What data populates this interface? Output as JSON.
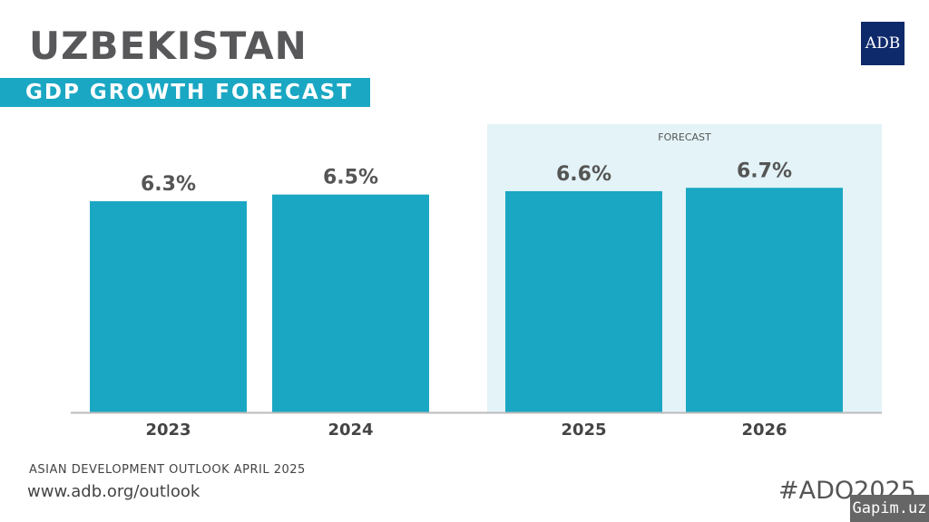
{
  "header": {
    "title": "UZBEKISTAN",
    "subtitle": "GDP GROWTH FORECAST",
    "logo": "ADB"
  },
  "footer": {
    "source": "ASIAN DEVELOPMENT OUTLOOK APRIL 2025",
    "url": "www.adb.org/outlook",
    "hashtag": "#ADO2025",
    "watermark": "Gapim.uz"
  },
  "colors": {
    "bar": "#1aa7c3",
    "forecast_bg": "#e3f3f7",
    "title": "#58585a"
  },
  "chart_data": {
    "type": "bar",
    "categories": [
      "2023",
      "2024",
      "2025",
      "2026"
    ],
    "values": [
      6.3,
      6.5,
      6.6,
      6.7
    ],
    "labels": [
      "6.3%",
      "6.5%",
      "6.6%",
      "6.7%"
    ],
    "forecast_label": "FORECAST",
    "forecast_categories": [
      "2025",
      "2026"
    ],
    "ylim": [
      0,
      8.6
    ],
    "grid": false
  }
}
